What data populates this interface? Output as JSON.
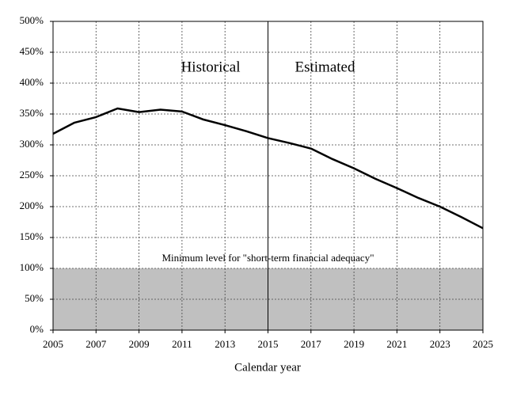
{
  "chart_data": {
    "type": "line",
    "x_label": "Calendar year",
    "x": [
      2005,
      2006,
      2007,
      2008,
      2009,
      2010,
      2011,
      2012,
      2013,
      2014,
      2015,
      2016,
      2017,
      2018,
      2019,
      2020,
      2021,
      2022,
      2023,
      2024,
      2025
    ],
    "series": [
      {
        "color": "#000000",
        "values": [
          318,
          336,
          345,
          359,
          353,
          357,
          354,
          341,
          332,
          322,
          311,
          303,
          294,
          277,
          262,
          245,
          230,
          214,
          200,
          183,
          165
        ]
      }
    ],
    "xlim": [
      2005,
      2025
    ],
    "xticks": [
      2005,
      2007,
      2009,
      2011,
      2013,
      2015,
      2017,
      2019,
      2021,
      2023,
      2025
    ],
    "ylim": [
      0,
      500
    ],
    "yticks": [
      {
        "value": 0,
        "label": "0%"
      },
      {
        "value": 50,
        "label": "50%"
      },
      {
        "value": 100,
        "label": "100%"
      },
      {
        "value": 150,
        "label": "150%"
      },
      {
        "value": 200,
        "label": "200%"
      },
      {
        "value": 250,
        "label": "250%"
      },
      {
        "value": 300,
        "label": "300%"
      },
      {
        "value": 350,
        "label": "350%"
      },
      {
        "value": 400,
        "label": "400%"
      },
      {
        "value": 450,
        "label": "450%"
      },
      {
        "value": 500,
        "label": "500%"
      }
    ],
    "grid": true,
    "band": {
      "range": [
        0,
        100
      ],
      "color": "#c0c0c0",
      "label": "Minimum level for \"short-term financial adequacy\""
    },
    "divider": {
      "x": 2015,
      "left_label": "Historical",
      "right_label": "Estimated"
    }
  }
}
